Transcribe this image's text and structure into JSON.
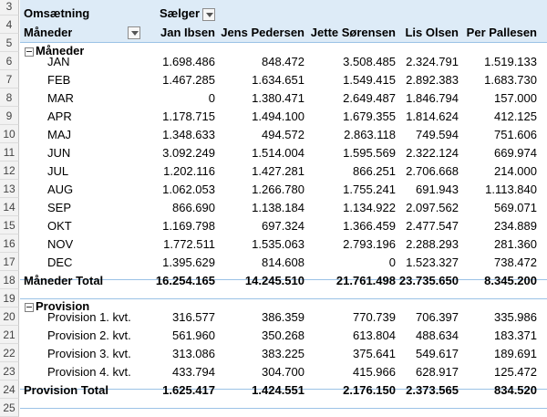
{
  "row_numbers": [
    "3",
    "4",
    "5",
    "6",
    "7",
    "8",
    "9",
    "10",
    "11",
    "12",
    "13",
    "14",
    "15",
    "16",
    "17",
    "18",
    "19",
    "20",
    "21",
    "22",
    "23",
    "24",
    "25"
  ],
  "header": {
    "omsaetning": "Omsætning",
    "saelger": "Sælger",
    "maaneder": "Måneder",
    "columns": [
      "Jan Ibsen",
      "Jens Pedersen",
      "Jette Sørensen",
      "Lis Olsen",
      "Per Pallesen"
    ]
  },
  "months_group": {
    "label": "Måneder",
    "rows": [
      {
        "label": "JAN",
        "values": [
          "1.698.486",
          "848.472",
          "3.508.485",
          "2.324.791",
          "1.519.133"
        ]
      },
      {
        "label": "FEB",
        "values": [
          "1.467.285",
          "1.634.651",
          "1.549.415",
          "2.892.383",
          "1.683.730"
        ]
      },
      {
        "label": "MAR",
        "values": [
          "0",
          "1.380.471",
          "2.649.487",
          "1.846.794",
          "157.000"
        ]
      },
      {
        "label": "APR",
        "values": [
          "1.178.715",
          "1.494.100",
          "1.679.355",
          "1.814.624",
          "412.125"
        ]
      },
      {
        "label": "MAJ",
        "values": [
          "1.348.633",
          "494.572",
          "2.863.118",
          "749.594",
          "751.606"
        ]
      },
      {
        "label": "JUN",
        "values": [
          "3.092.249",
          "1.514.004",
          "1.595.569",
          "2.322.124",
          "669.974"
        ]
      },
      {
        "label": "JUL",
        "values": [
          "1.202.116",
          "1.427.281",
          "866.251",
          "2.706.668",
          "214.000"
        ]
      },
      {
        "label": "AUG",
        "values": [
          "1.062.053",
          "1.266.780",
          "1.755.241",
          "691.943",
          "1.113.840"
        ]
      },
      {
        "label": "SEP",
        "values": [
          "866.690",
          "1.138.184",
          "1.134.922",
          "2.097.562",
          "569.071"
        ]
      },
      {
        "label": "OKT",
        "values": [
          "1.169.798",
          "697.324",
          "1.366.459",
          "2.477.547",
          "234.889"
        ]
      },
      {
        "label": "NOV",
        "values": [
          "1.772.511",
          "1.535.063",
          "2.793.196",
          "2.288.293",
          "281.360"
        ]
      },
      {
        "label": "DEC",
        "values": [
          "1.395.629",
          "814.608",
          "0",
          "1.523.327",
          "738.472"
        ]
      }
    ],
    "total": {
      "label": "Måneder Total",
      "values": [
        "16.254.165",
        "14.245.510",
        "21.761.498",
        "23.735.650",
        "8.345.200"
      ]
    }
  },
  "provision_group": {
    "label": "Provision",
    "rows": [
      {
        "label": "Provision 1. kvt.",
        "values": [
          "316.577",
          "386.359",
          "770.739",
          "706.397",
          "335.986"
        ]
      },
      {
        "label": "Provision 2. kvt.",
        "values": [
          "561.960",
          "350.268",
          "613.804",
          "488.634",
          "183.371"
        ]
      },
      {
        "label": "Provision 3. kvt.",
        "values": [
          "313.086",
          "383.225",
          "375.641",
          "549.617",
          "189.691"
        ]
      },
      {
        "label": "Provision 4. kvt.",
        "values": [
          "433.794",
          "304.700",
          "415.966",
          "628.917",
          "125.472"
        ]
      }
    ],
    "total": {
      "label": "Provision Total",
      "values": [
        "1.625.417",
        "1.424.551",
        "2.176.150",
        "2.373.565",
        "834.520"
      ]
    }
  }
}
